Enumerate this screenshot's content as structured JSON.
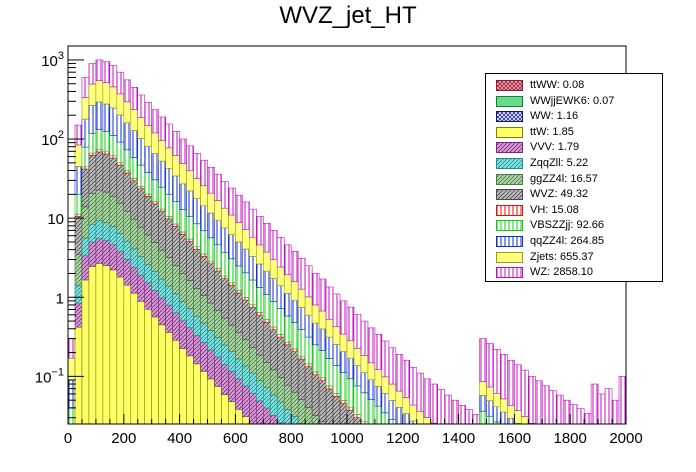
{
  "chart_data": {
    "type": "bar",
    "subtype": "stacked-histogram",
    "title": "WVZ_jet_HT",
    "xlabel": "",
    "ylabel": "",
    "xlim": [
      0,
      2000
    ],
    "ylim": [
      0.025,
      1500
    ],
    "yscale": "log",
    "x_ticks": [
      "0",
      "200",
      "400",
      "600",
      "800",
      "1000",
      "1200",
      "1400",
      "1600",
      "1800",
      "2000"
    ],
    "y_ticks": [
      {
        "base": "10",
        "exp": "−1",
        "value": 0.1
      },
      {
        "base": "1",
        "exp": "",
        "value": 1
      },
      {
        "base": "10",
        "exp": "",
        "value": 10
      },
      {
        "base": "10",
        "exp": "2",
        "value": 100
      },
      {
        "base": "10",
        "exp": "3",
        "value": 1000
      }
    ],
    "bins": 80,
    "legend_position": "top-right",
    "legend_order": [
      "ttWW",
      "WWjjEWK6",
      "WW",
      "ttW",
      "VVV",
      "ZqqZll",
      "ggZZ4l",
      "WVZ",
      "VH",
      "VBSZZjj",
      "qqZZ4l",
      "Zjets",
      "WZ"
    ],
    "stack_order": [
      "ttW",
      "VVV",
      "ZqqZll",
      "ggZZ4l",
      "WVZ",
      "VH",
      "VBSZZjj",
      "qqZZ4l",
      "Zjets",
      "WZ"
    ],
    "series": [
      {
        "name": "ttWW",
        "legend": "ttWW: 0.08",
        "total": 0.08,
        "color": "#f0a0b4",
        "edge": "#8b1a2a",
        "pattern": "cross"
      },
      {
        "name": "WWjjEWK6",
        "legend": "WWjjEWK6: 0.07",
        "total": 0.07,
        "color": "#66dd88",
        "edge": "#1f7a3a",
        "pattern": "solid"
      },
      {
        "name": "WW",
        "legend": "WW: 1.16",
        "total": 1.16,
        "color": "#e8e8ff",
        "edge": "#0a1580",
        "pattern": "cross"
      },
      {
        "name": "ttW",
        "legend": "ttW: 1.85",
        "total": 1.85,
        "color": "#ffff66",
        "edge": "#808000",
        "pattern": "solid"
      },
      {
        "name": "VVV",
        "legend": "VVV: 1.79",
        "total": 1.79,
        "color": "#d8a0d8",
        "edge": "#7a2a7a",
        "pattern": "diag"
      },
      {
        "name": "ZqqZll",
        "legend": "ZqqZll: 5.22",
        "total": 5.22,
        "color": "#80e6e6",
        "edge": "#2a8a8a",
        "pattern": "diag"
      },
      {
        "name": "ggZZ4l",
        "legend": "ggZZ4l: 16.57",
        "total": 16.57,
        "color": "#aed9a8",
        "edge": "#4a7a44",
        "pattern": "diag"
      },
      {
        "name": "WVZ",
        "legend": "WVZ: 49.32",
        "total": 49.32,
        "color": "#bdbdbd",
        "edge": "#4a4a4a",
        "pattern": "diag"
      },
      {
        "name": "VH",
        "legend": "VH: 15.08",
        "total": 15.08,
        "color": "#ffffff",
        "edge": "#e01010",
        "pattern": "vert"
      },
      {
        "name": "VBSZZjj",
        "legend": "VBSZZjj: 92.66",
        "total": 92.66,
        "color": "#ffffff",
        "edge": "#10cc10",
        "pattern": "vert"
      },
      {
        "name": "qqZZ4l",
        "legend": "qqZZ4l: 264.85",
        "total": 264.85,
        "color": "#ffffff",
        "edge": "#1030cc",
        "pattern": "vert"
      },
      {
        "name": "Zjets",
        "legend": "Zjets: 655.37",
        "total": 655.37,
        "color": "#ffff80",
        "edge": "#a0a000",
        "pattern": "solid"
      },
      {
        "name": "WZ",
        "legend": "WZ: 2858.10",
        "total": 2858.1,
        "color": "#ffffff",
        "edge": "#c010c0",
        "pattern": "vert"
      }
    ],
    "stack_top_estimate": [
      0.3,
      150,
      600,
      900,
      1000,
      950,
      850,
      700,
      560,
      450,
      360,
      290,
      235,
      190,
      155,
      125,
      100,
      82,
      66,
      54,
      44,
      36,
      29,
      24,
      19.5,
      16,
      13,
      10.5,
      8.6,
      7,
      5.7,
      4.6,
      3.8,
      3.1,
      2.5,
      2.0,
      1.7,
      1.35,
      1.1,
      0.9,
      0.75,
      0.61,
      0.5,
      0.41,
      0.34,
      0.28,
      0.23,
      0.19,
      0.16,
      0.13,
      0.11,
      0.093,
      0.08,
      0.068,
      0.058,
      0.05,
      0.043,
      0.038,
      0.033,
      0.3,
      0.26,
      0.22,
      0.19,
      0.16,
      0.14,
      0.12,
      0.1,
      0.088,
      0.076,
      0.066,
      0.058,
      0.05,
      0.044,
      0.039,
      0.034,
      0.08,
      0.06,
      0.07,
      0.05,
      0.1
    ]
  }
}
